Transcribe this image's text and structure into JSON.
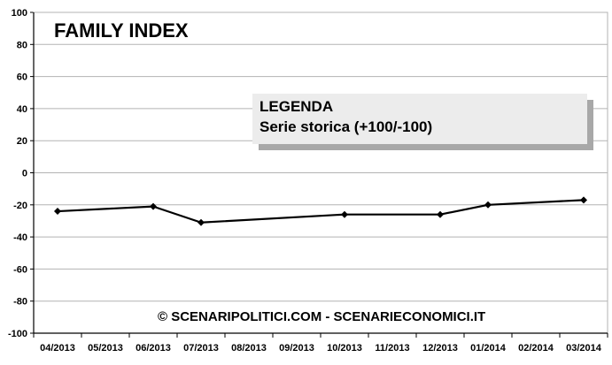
{
  "chart_data": {
    "type": "line",
    "title": "FAMILY INDEX",
    "categories": [
      "04/2013",
      "05/2013",
      "06/2013",
      "07/2013",
      "08/2013",
      "09/2013",
      "10/2013",
      "11/2013",
      "12/2013",
      "01/2014",
      "02/2014",
      "03/2014"
    ],
    "series": [
      {
        "name": "Serie storica (+100/-100)",
        "points": [
          {
            "x": "04/2013",
            "y": -24
          },
          {
            "x": "06/2013",
            "y": -21
          },
          {
            "x": "07/2013",
            "y": -31
          },
          {
            "x": "10/2013",
            "y": -26
          },
          {
            "x": "12/2013",
            "y": -26
          },
          {
            "x": "01/2014",
            "y": -20
          },
          {
            "x": "03/2014",
            "y": -17
          }
        ]
      }
    ],
    "yticks": [
      100,
      80,
      60,
      40,
      20,
      0,
      -20,
      -40,
      -60,
      -80,
      -100
    ],
    "ylim": [
      -100,
      100
    ],
    "grid": true,
    "legend": {
      "heading": "LEGENDA",
      "entry": "Serie storica (+100/-100)",
      "placement": "upper-center"
    },
    "watermark": "© SCENARIPOLITICI.COM - SCENARIECONOMICI.IT",
    "line_color": "#000000",
    "grid_color": "#b3b3b3"
  }
}
